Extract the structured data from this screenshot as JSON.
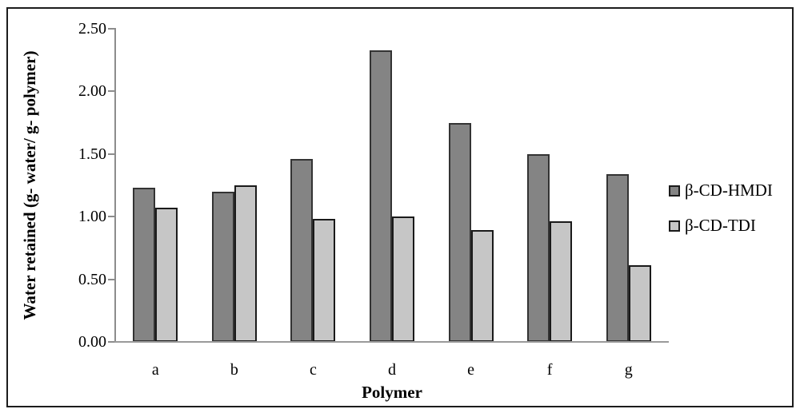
{
  "chart_data": {
    "type": "bar",
    "title": "",
    "categories": [
      "a",
      "b",
      "c",
      "d",
      "e",
      "f",
      "g"
    ],
    "series": [
      {
        "name": "β-CD-HMDI",
        "color": "#848484",
        "border_color": "#333333",
        "values": [
          1.23,
          1.2,
          1.46,
          2.33,
          1.75,
          1.5,
          1.34
        ]
      },
      {
        "name": "β-CD-TDI",
        "color": "#c6c6c6",
        "border_color": "#1a1a1a",
        "values": [
          1.07,
          1.25,
          0.98,
          1.0,
          0.89,
          0.96,
          0.61
        ]
      }
    ],
    "xlabel": "Polymer",
    "ylabel": "Water retained (g- water/ g- polymer)",
    "ylim": [
      0.0,
      2.5
    ],
    "ytick_step": 0.5,
    "ytick_labels": [
      "0.00",
      "0.50",
      "1.00",
      "1.50",
      "2.00",
      "2.50"
    ],
    "grid": false,
    "legend_position": "right-middle",
    "axis_color": "#8c8c8c",
    "background_color": "#ffffff",
    "frame_color": "#1c1c1c"
  }
}
